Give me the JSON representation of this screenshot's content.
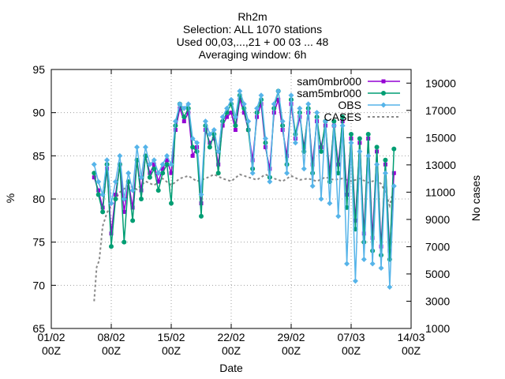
{
  "chart_data": {
    "type": "line",
    "title_lines": [
      "Rh2m",
      "Selection: ALL   1070 stations",
      "Used 00,03,...,21 + 00 03 ... 48",
      "Averaging window:  6h"
    ],
    "xlabel": "Date",
    "ylabel": "%",
    "y2label": "No cases",
    "x_range_days": [
      0,
      42
    ],
    "ylim": [
      65,
      95
    ],
    "y2lim": [
      1000,
      20000
    ],
    "x_ticks": [
      {
        "day": 0,
        "line1": "01/02",
        "line2": "00Z"
      },
      {
        "day": 7,
        "line1": "08/02",
        "line2": "00Z"
      },
      {
        "day": 14,
        "line1": "15/02",
        "line2": "00Z"
      },
      {
        "day": 21,
        "line1": "22/02",
        "line2": "00Z"
      },
      {
        "day": 28,
        "line1": "29/02",
        "line2": "00Z"
      },
      {
        "day": 35,
        "line1": "07/03",
        "line2": "00Z"
      },
      {
        "day": 42,
        "line1": "14/03",
        "line2": "00Z"
      }
    ],
    "y_ticks": [
      "65",
      "70",
      "75",
      "80",
      "85",
      "90",
      "95"
    ],
    "y2_ticks": [
      "1000",
      "3000",
      "5000",
      "7000",
      "9000",
      "11000",
      "13000",
      "15000",
      "17000",
      "19000"
    ],
    "grid": true,
    "legend_position": "top-right",
    "series": [
      {
        "name": "sam0mbr000",
        "color": "#9400d3",
        "axis": "left",
        "marker": "square",
        "x": [
          5.0,
          5.5,
          6.0,
          6.5,
          7.0,
          7.5,
          8.0,
          8.5,
          9.0,
          9.5,
          10.0,
          10.5,
          11.0,
          11.5,
          12.0,
          12.5,
          13.0,
          13.5,
          14.0,
          14.5,
          15.0,
          15.5,
          16.0,
          16.5,
          17.0,
          17.5,
          18.0,
          18.5,
          19.0,
          19.5,
          20.0,
          20.5,
          21.0,
          21.5,
          22.0,
          22.5,
          23.0,
          23.5,
          24.0,
          24.5,
          25.0,
          25.5,
          26.0,
          26.5,
          27.0,
          27.5,
          28.0,
          28.5,
          29.0,
          29.5,
          30.0,
          30.5,
          31.0,
          31.5,
          32.0,
          32.5,
          33.0,
          33.5,
          34.0,
          34.5,
          35.0,
          35.5,
          36.0,
          36.5,
          37.0,
          37.5,
          38.0,
          38.5,
          39.0,
          39.5,
          40.0
        ],
        "y": [
          82.5,
          81.0,
          79.0,
          83.5,
          76.0,
          80.5,
          84.0,
          78.5,
          82.0,
          79.0,
          84.5,
          81.0,
          85.0,
          83.0,
          84.0,
          82.0,
          83.5,
          84.5,
          83.0,
          88.0,
          90.5,
          89.0,
          90.0,
          85.0,
          86.0,
          79.5,
          88.0,
          86.5,
          87.0,
          84.0,
          88.5,
          89.5,
          90.0,
          88.0,
          91.5,
          90.0,
          88.0,
          84.5,
          89.5,
          91.0,
          86.0,
          83.5,
          90.0,
          91.5,
          88.0,
          85.0,
          91.0,
          87.0,
          89.5,
          86.0,
          90.0,
          84.0,
          89.0,
          86.0,
          88.5,
          83.0,
          88.5,
          84.0,
          89.0,
          80.5,
          87.0,
          77.5,
          86.5,
          76.0,
          87.0,
          75.5,
          85.5,
          74.5,
          84.0,
          74.0,
          83.0
        ]
      },
      {
        "name": "sam5mbr000",
        "color": "#009e73",
        "axis": "left",
        "marker": "circle",
        "x": [
          5.0,
          5.5,
          6.0,
          6.5,
          7.0,
          7.5,
          8.0,
          8.5,
          9.0,
          9.5,
          10.0,
          10.5,
          11.0,
          11.5,
          12.0,
          12.5,
          13.0,
          13.5,
          14.0,
          14.5,
          15.0,
          15.5,
          16.0,
          16.5,
          17.0,
          17.5,
          18.0,
          18.5,
          19.0,
          19.5,
          20.0,
          20.5,
          21.0,
          21.5,
          22.0,
          22.5,
          23.0,
          23.5,
          24.0,
          24.5,
          25.0,
          25.5,
          26.0,
          26.5,
          27.0,
          27.5,
          28.0,
          28.5,
          29.0,
          29.5,
          30.0,
          30.5,
          31.0,
          31.5,
          32.0,
          32.5,
          33.0,
          33.5,
          34.0,
          34.5,
          35.0,
          35.5,
          36.0,
          36.5,
          37.0,
          37.5,
          38.0,
          38.5,
          39.0,
          39.5,
          40.0
        ],
        "y": [
          83.0,
          80.5,
          78.5,
          84.0,
          74.5,
          80.0,
          84.0,
          75.0,
          82.0,
          77.5,
          84.5,
          80.0,
          85.0,
          82.5,
          83.5,
          81.0,
          83.0,
          84.0,
          79.5,
          88.5,
          91.0,
          89.5,
          90.5,
          86.0,
          85.5,
          78.0,
          88.5,
          86.0,
          87.5,
          83.0,
          89.0,
          90.0,
          91.0,
          88.5,
          92.0,
          90.5,
          88.0,
          83.5,
          90.0,
          91.5,
          86.5,
          82.5,
          90.5,
          92.5,
          88.5,
          84.0,
          91.5,
          87.5,
          90.0,
          85.5,
          90.5,
          83.0,
          89.5,
          85.5,
          89.0,
          82.0,
          89.0,
          83.0,
          89.5,
          79.0,
          87.5,
          76.5,
          87.0,
          75.0,
          87.5,
          74.0,
          86.0,
          73.5,
          84.5,
          73.0,
          85.8
        ]
      },
      {
        "name": "OBS",
        "color": "#56b4e9",
        "axis": "left",
        "marker": "diamond",
        "x": [
          5.0,
          5.5,
          6.0,
          6.5,
          7.0,
          7.5,
          8.0,
          8.5,
          9.0,
          9.5,
          10.0,
          10.5,
          11.0,
          11.5,
          12.0,
          12.5,
          13.0,
          13.5,
          14.0,
          14.5,
          15.0,
          15.5,
          16.0,
          16.5,
          17.0,
          17.5,
          18.0,
          18.5,
          19.0,
          19.5,
          20.0,
          20.5,
          21.0,
          21.5,
          22.0,
          22.5,
          23.0,
          23.5,
          24.0,
          24.5,
          25.0,
          25.5,
          26.0,
          26.5,
          27.0,
          27.5,
          28.0,
          28.5,
          29.0,
          29.5,
          30.0,
          30.5,
          31.0,
          31.5,
          32.0,
          32.5,
          33.0,
          33.5,
          34.0,
          34.5,
          35.0,
          35.5,
          36.0,
          36.5,
          37.0,
          37.5,
          38.0,
          38.5,
          39.0,
          39.5,
          40.0
        ],
        "y": [
          84.0,
          82.0,
          80.5,
          84.5,
          79.5,
          82.0,
          85.0,
          80.0,
          83.0,
          81.0,
          86.0,
          82.5,
          86.0,
          84.0,
          84.5,
          83.0,
          84.0,
          85.0,
          84.0,
          89.0,
          91.0,
          90.5,
          91.0,
          87.0,
          86.5,
          80.5,
          89.0,
          87.5,
          88.0,
          85.5,
          89.5,
          90.5,
          91.5,
          89.5,
          92.5,
          91.0,
          89.0,
          83.0,
          90.5,
          92.0,
          87.0,
          82.0,
          91.0,
          92.5,
          89.0,
          83.0,
          92.0,
          86.5,
          90.5,
          83.5,
          91.0,
          81.5,
          90.0,
          80.0,
          89.0,
          79.5,
          88.5,
          78.0,
          88.5,
          72.5,
          86.5,
          70.5,
          85.5,
          73.0,
          85.0,
          72.5,
          84.0,
          72.0,
          83.0,
          69.8,
          81.5
        ]
      },
      {
        "name": "CASES",
        "color": "#888888",
        "axis": "right",
        "dashed": true,
        "marker": "none",
        "x": [
          5.0,
          5.3,
          5.6,
          6.0,
          6.5,
          7.0,
          7.5,
          8.0,
          9.0,
          10.0,
          11.0,
          12.0,
          13.0,
          14.0,
          15.0,
          16.0,
          17.0,
          18.0,
          19.0,
          20.0,
          21.0,
          22.0,
          23.0,
          24.0,
          25.0,
          26.0,
          27.0,
          28.0,
          29.0,
          30.0,
          31.0,
          32.0,
          33.0,
          34.0,
          35.0,
          36.0,
          37.0,
          38.0,
          38.5,
          39.0,
          39.5,
          40.0
        ],
        "y": [
          3000,
          5500,
          6000,
          8500,
          9500,
          10000,
          10500,
          11000,
          11500,
          11200,
          11800,
          11500,
          12000,
          11500,
          12000,
          12200,
          11800,
          12000,
          12300,
          12000,
          11800,
          12300,
          12100,
          11900,
          12300,
          12000,
          11800,
          12200,
          11900,
          12000,
          11800,
          12100,
          11900,
          12000,
          11800,
          12000,
          11700,
          11900,
          11600,
          11000,
          10000,
          11400
        ]
      }
    ]
  }
}
